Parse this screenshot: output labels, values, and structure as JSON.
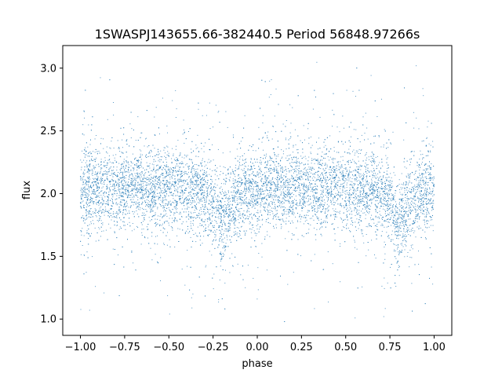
{
  "chart_data": {
    "type": "scatter",
    "title": "1SWASPJ143655.66-382440.5 Period 56848.97266s",
    "xlabel": "phase",
    "ylabel": "flux",
    "xlim": [
      -1.1,
      1.1
    ],
    "ylim": [
      0.87,
      3.18
    ],
    "xticks": [
      -1.0,
      -0.75,
      -0.5,
      -0.25,
      0.0,
      0.25,
      0.5,
      0.75,
      1.0
    ],
    "xtick_labels": [
      "−1.00",
      "−0.75",
      "−0.50",
      "−0.25",
      "0.00",
      "0.25",
      "0.50",
      "0.75",
      "1.00"
    ],
    "yticks": [
      1.0,
      1.5,
      2.0,
      2.5,
      3.0
    ],
    "ytick_labels": [
      "1.0",
      "1.5",
      "2.0",
      "2.5",
      "3.0"
    ],
    "grid": false,
    "marker_color": "#1f77b4",
    "series": [
      {
        "profile_phase": [
          -1.0,
          -0.75,
          -0.5,
          -0.35,
          -0.25,
          -0.2,
          -0.15,
          -0.1,
          0.0,
          0.25,
          0.5,
          0.65,
          0.75,
          0.8,
          0.85,
          0.9,
          1.0
        ],
        "profile_flux": [
          2.02,
          2.06,
          2.05,
          2.03,
          1.93,
          1.78,
          1.86,
          1.98,
          2.04,
          2.06,
          2.05,
          2.03,
          1.93,
          1.78,
          1.86,
          1.98,
          2.04
        ],
        "flux_spread": 0.16
      }
    ]
  }
}
